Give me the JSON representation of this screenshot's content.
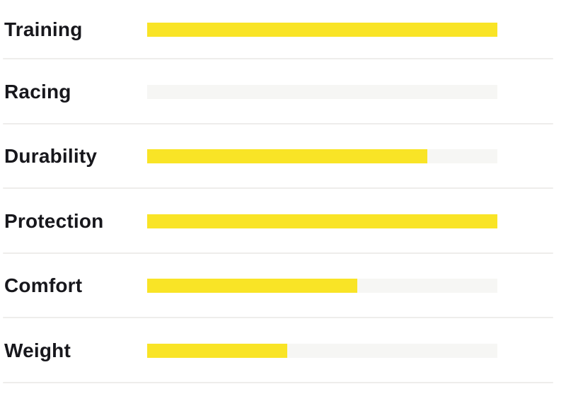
{
  "chart_data": {
    "type": "bar",
    "orientation": "horizontal",
    "title": "",
    "xlabel": "",
    "ylabel": "",
    "xlim": [
      0,
      100
    ],
    "grid": false,
    "legend": false,
    "categories": [
      "Training",
      "Racing",
      "Durability",
      "Protection",
      "Comfort",
      "Weight"
    ],
    "values_percent": [
      100,
      0,
      80,
      100,
      60,
      40
    ],
    "scores_out_of_5": [
      5,
      0,
      4,
      5,
      3,
      2
    ],
    "colors": {
      "bar_fill": "#f9e426",
      "bar_track": "#f6f6f4",
      "label_text": "#17171c",
      "divider": "#eeedeb",
      "background": "#ffffff"
    }
  }
}
